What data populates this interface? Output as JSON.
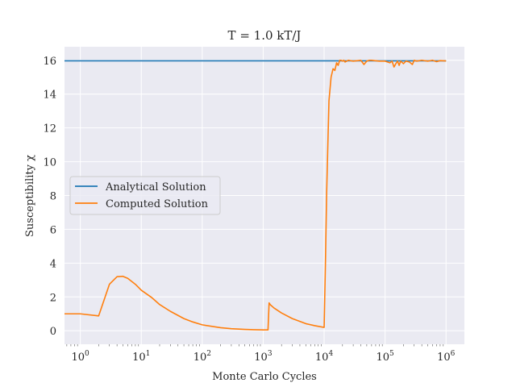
{
  "chart_data": {
    "type": "line",
    "title": "T = 1.0 kT/J",
    "xlabel": "Monte Carlo Cycles",
    "ylabel": "Susceptibility χ",
    "xscale": "log",
    "xlim": [
      0.55,
      2000000
    ],
    "ylim": [
      -0.8,
      16.8
    ],
    "xticks": [
      {
        "value": 1,
        "base": "10",
        "exp": "0"
      },
      {
        "value": 10,
        "base": "10",
        "exp": "1"
      },
      {
        "value": 100,
        "base": "10",
        "exp": "2"
      },
      {
        "value": 1000,
        "base": "10",
        "exp": "3"
      },
      {
        "value": 10000,
        "base": "10",
        "exp": "4"
      },
      {
        "value": 100000,
        "base": "10",
        "exp": "5"
      },
      {
        "value": 1000000,
        "base": "10",
        "exp": "6"
      }
    ],
    "yticks": [
      0,
      2,
      4,
      6,
      8,
      10,
      12,
      14,
      16
    ],
    "grid": true,
    "legend_position": "center-left",
    "series": [
      {
        "name": "Analytical Solution",
        "color": "#1f77b4",
        "x": [
          0.55,
          1000000
        ],
        "y": [
          15.97,
          15.97
        ]
      },
      {
        "name": "Computed Solution",
        "color": "#ff7f0e",
        "x": [
          0.55,
          1,
          2,
          3,
          4,
          5,
          6,
          8,
          10,
          15,
          20,
          30,
          50,
          70,
          100,
          200,
          300,
          500,
          700,
          1000,
          1200,
          1250,
          1300,
          1500,
          2000,
          3000,
          5000,
          7000,
          10000,
          10500,
          11000,
          11500,
          12000,
          13000,
          14000,
          15000,
          16000,
          17000,
          18000,
          19000,
          20000,
          21000,
          22000,
          25000,
          30000,
          40000,
          45000,
          50000,
          55000,
          60000,
          80000,
          100000,
          120000,
          130000,
          140000,
          150000,
          160000,
          170000,
          180000,
          200000,
          220000,
          250000,
          280000,
          300000,
          330000,
          400000,
          500000,
          600000,
          700000,
          800000,
          1000000
        ],
        "y": [
          1.0,
          1.0,
          0.88,
          2.75,
          3.2,
          3.22,
          3.1,
          2.75,
          2.4,
          1.95,
          1.55,
          1.15,
          0.72,
          0.52,
          0.35,
          0.18,
          0.12,
          0.08,
          0.06,
          0.05,
          0.05,
          1.65,
          1.55,
          1.35,
          1.05,
          0.72,
          0.42,
          0.3,
          0.2,
          4.0,
          8.2,
          11.0,
          13.6,
          15.0,
          15.5,
          15.4,
          15.85,
          15.7,
          16.0,
          16.0,
          15.95,
          16.0,
          15.9,
          16.0,
          15.95,
          16.0,
          15.75,
          15.95,
          16.0,
          16.0,
          15.95,
          15.95,
          15.85,
          15.95,
          15.6,
          15.8,
          15.95,
          15.7,
          15.95,
          15.8,
          15.95,
          15.9,
          15.75,
          16.0,
          15.95,
          16.0,
          15.95,
          16.0,
          15.92,
          15.98,
          15.96
        ]
      }
    ]
  }
}
